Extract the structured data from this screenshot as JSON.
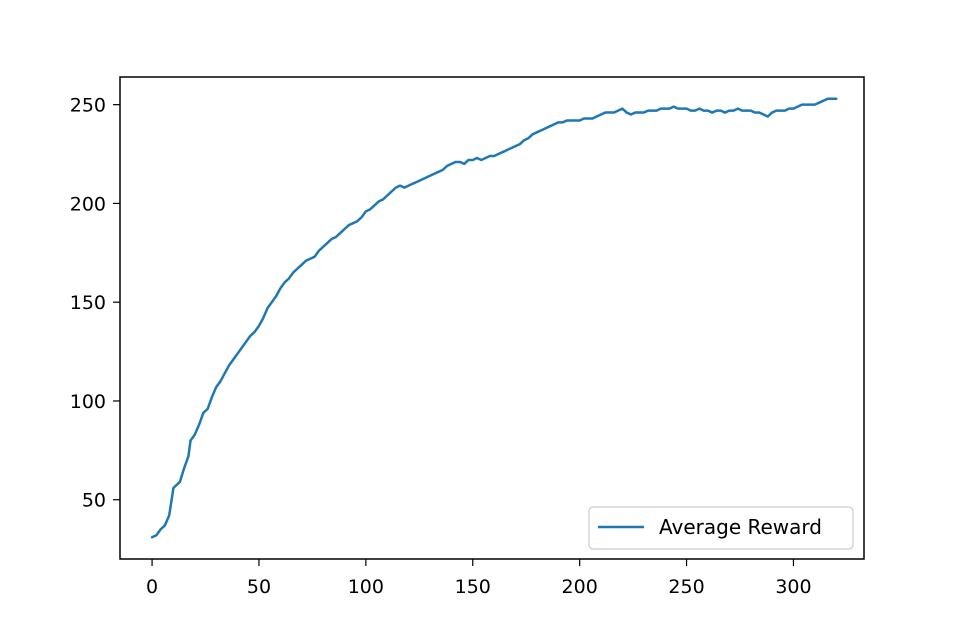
{
  "chart_data": {
    "type": "line",
    "title": "",
    "xlabel": "",
    "ylabel": "",
    "xlim": [
      -15,
      333
    ],
    "ylim": [
      20,
      264
    ],
    "xticks": [
      0,
      50,
      100,
      150,
      200,
      250,
      300
    ],
    "yticks": [
      50,
      100,
      150,
      200,
      250
    ],
    "grid": false,
    "legend_position": "lower-right",
    "series": [
      {
        "name": "Average Reward",
        "color": "#1f77b4",
        "points": [
          [
            0,
            31
          ],
          [
            2,
            32
          ],
          [
            4,
            35
          ],
          [
            6,
            37
          ],
          [
            8,
            42
          ],
          [
            10,
            56
          ],
          [
            12,
            58
          ],
          [
            13,
            59
          ],
          [
            15,
            66
          ],
          [
            17,
            72
          ],
          [
            18,
            80
          ],
          [
            20,
            83
          ],
          [
            22,
            88
          ],
          [
            24,
            94
          ],
          [
            26,
            96
          ],
          [
            28,
            102
          ],
          [
            30,
            107
          ],
          [
            32,
            110
          ],
          [
            34,
            114
          ],
          [
            36,
            118
          ],
          [
            38,
            121
          ],
          [
            40,
            124
          ],
          [
            42,
            127
          ],
          [
            44,
            130
          ],
          [
            46,
            133
          ],
          [
            48,
            135
          ],
          [
            50,
            138
          ],
          [
            52,
            142
          ],
          [
            54,
            147
          ],
          [
            56,
            150
          ],
          [
            58,
            153
          ],
          [
            60,
            157
          ],
          [
            62,
            160
          ],
          [
            64,
            162
          ],
          [
            66,
            165
          ],
          [
            68,
            167
          ],
          [
            70,
            169
          ],
          [
            72,
            171
          ],
          [
            74,
            172
          ],
          [
            76,
            173
          ],
          [
            78,
            176
          ],
          [
            80,
            178
          ],
          [
            82,
            180
          ],
          [
            84,
            182
          ],
          [
            86,
            183
          ],
          [
            88,
            185
          ],
          [
            90,
            187
          ],
          [
            92,
            189
          ],
          [
            94,
            190
          ],
          [
            96,
            191
          ],
          [
            98,
            193
          ],
          [
            100,
            196
          ],
          [
            102,
            197
          ],
          [
            104,
            199
          ],
          [
            106,
            201
          ],
          [
            108,
            202
          ],
          [
            110,
            204
          ],
          [
            112,
            206
          ],
          [
            114,
            208
          ],
          [
            116,
            209
          ],
          [
            118,
            208
          ],
          [
            120,
            209
          ],
          [
            122,
            210
          ],
          [
            124,
            211
          ],
          [
            126,
            212
          ],
          [
            128,
            213
          ],
          [
            130,
            214
          ],
          [
            132,
            215
          ],
          [
            134,
            216
          ],
          [
            136,
            217
          ],
          [
            138,
            219
          ],
          [
            140,
            220
          ],
          [
            142,
            221
          ],
          [
            144,
            221
          ],
          [
            146,
            220
          ],
          [
            148,
            222
          ],
          [
            150,
            222
          ],
          [
            152,
            223
          ],
          [
            154,
            222
          ],
          [
            156,
            223
          ],
          [
            158,
            224
          ],
          [
            160,
            224
          ],
          [
            162,
            225
          ],
          [
            164,
            226
          ],
          [
            166,
            227
          ],
          [
            168,
            228
          ],
          [
            170,
            229
          ],
          [
            172,
            230
          ],
          [
            174,
            232
          ],
          [
            176,
            233
          ],
          [
            178,
            235
          ],
          [
            180,
            236
          ],
          [
            182,
            237
          ],
          [
            184,
            238
          ],
          [
            186,
            239
          ],
          [
            188,
            240
          ],
          [
            190,
            241
          ],
          [
            192,
            241
          ],
          [
            194,
            242
          ],
          [
            196,
            242
          ],
          [
            198,
            242
          ],
          [
            200,
            242
          ],
          [
            202,
            243
          ],
          [
            204,
            243
          ],
          [
            206,
            243
          ],
          [
            208,
            244
          ],
          [
            210,
            245
          ],
          [
            212,
            246
          ],
          [
            214,
            246
          ],
          [
            216,
            246
          ],
          [
            218,
            247
          ],
          [
            220,
            248
          ],
          [
            222,
            246
          ],
          [
            224,
            245
          ],
          [
            226,
            246
          ],
          [
            228,
            246
          ],
          [
            230,
            246
          ],
          [
            232,
            247
          ],
          [
            234,
            247
          ],
          [
            236,
            247
          ],
          [
            238,
            248
          ],
          [
            240,
            248
          ],
          [
            242,
            248
          ],
          [
            244,
            249
          ],
          [
            246,
            248
          ],
          [
            248,
            248
          ],
          [
            250,
            248
          ],
          [
            252,
            247
          ],
          [
            254,
            247
          ],
          [
            256,
            248
          ],
          [
            258,
            247
          ],
          [
            260,
            247
          ],
          [
            262,
            246
          ],
          [
            264,
            247
          ],
          [
            266,
            247
          ],
          [
            268,
            246
          ],
          [
            270,
            247
          ],
          [
            272,
            247
          ],
          [
            274,
            248
          ],
          [
            276,
            247
          ],
          [
            278,
            247
          ],
          [
            280,
            247
          ],
          [
            282,
            246
          ],
          [
            284,
            246
          ],
          [
            286,
            245
          ],
          [
            288,
            244
          ],
          [
            290,
            246
          ],
          [
            292,
            247
          ],
          [
            294,
            247
          ],
          [
            296,
            247
          ],
          [
            298,
            248
          ],
          [
            300,
            248
          ],
          [
            302,
            249
          ],
          [
            304,
            250
          ],
          [
            306,
            250
          ],
          [
            308,
            250
          ],
          [
            310,
            250
          ],
          [
            312,
            251
          ],
          [
            314,
            252
          ],
          [
            316,
            253
          ],
          [
            318,
            253
          ],
          [
            320,
            253
          ]
        ]
      }
    ]
  }
}
